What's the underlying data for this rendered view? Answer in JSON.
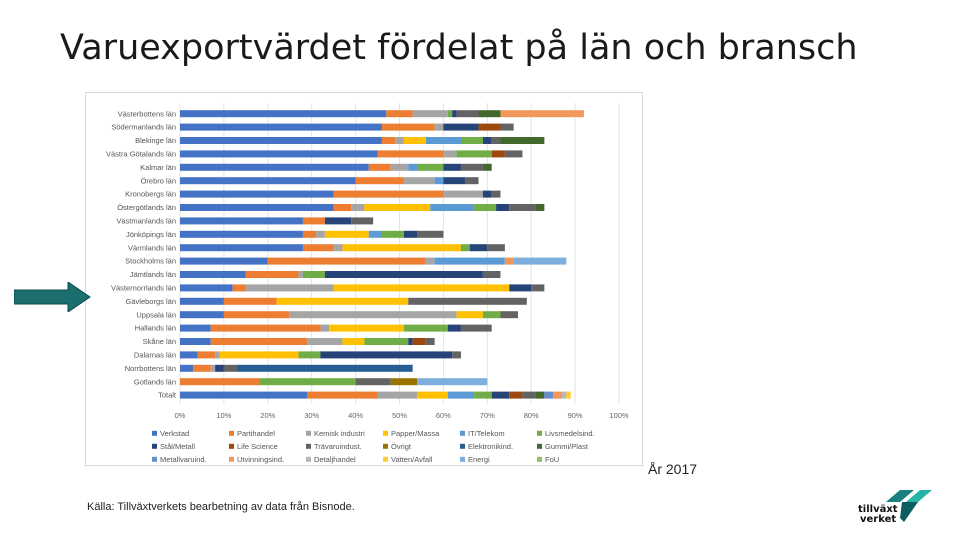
{
  "title": "Varuexportvärdet fördelat på län och bransch",
  "year_label": "År 2017",
  "source": "Källa: Tillväxtverkets bearbetning av data från Bisnode.",
  "logo": {
    "line1": "tillväxt",
    "line2": "verket",
    "colors": [
      "#1a7f7f",
      "#27b3a6",
      "#0d5e5e"
    ]
  },
  "arrow_color": "#1a6e6e",
  "chart_data": {
    "type": "bar",
    "orientation": "horizontal",
    "stacked": "percent",
    "xlim": [
      0,
      100
    ],
    "xticks": [
      "0%",
      "10%",
      "20%",
      "30%",
      "40%",
      "50%",
      "60%",
      "70%",
      "80%",
      "90%",
      "100%"
    ],
    "grid": true,
    "legend_position": "bottom",
    "categories": [
      "Västerbottens län",
      "Södermanlands län",
      "Blekinge län",
      "Västra Götalands län",
      "Kalmar län",
      "Örebro län",
      "Kronobergs län",
      "Östergötlands län",
      "Västmanlands län",
      "Jönköpings län",
      "Värmlands län",
      "Stockholms län",
      "Jämtlands län",
      "Västernorrlands län",
      "Gävleborgs län",
      "Uppsala län",
      "Hallands län",
      "Skåne län",
      "Dalarnas län",
      "Norrbottens län",
      "Gotlands län",
      "Totalt"
    ],
    "series": [
      {
        "name": "Verkstad",
        "color": "#4472c4",
        "values": [
          47,
          46,
          46,
          45,
          43,
          40,
          35,
          35,
          28,
          28,
          28,
          20,
          15,
          12,
          10,
          10,
          7,
          7,
          4,
          3,
          0,
          29
        ]
      },
      {
        "name": "Partihandel",
        "color": "#ed7d31",
        "values": [
          6,
          12,
          3,
          15,
          5,
          11,
          25,
          4,
          5,
          3,
          7,
          36,
          12,
          3,
          12,
          15,
          25,
          22,
          4,
          4,
          18,
          16
        ]
      },
      {
        "name": "Kemisk industri",
        "color": "#a5a5a5",
        "values": [
          8,
          2,
          2,
          3,
          4,
          7,
          9,
          3,
          0,
          2,
          2,
          2,
          1,
          20,
          0,
          38,
          2,
          8,
          1,
          1,
          0,
          9
        ]
      },
      {
        "name": "Papper/Massa",
        "color": "#ffc000",
        "values": [
          0,
          0,
          5,
          0,
          0,
          0,
          0,
          15,
          0,
          10,
          27,
          0,
          0,
          40,
          30,
          6,
          17,
          5,
          18,
          0,
          0,
          7
        ]
      },
      {
        "name": "IT/Telekom",
        "color": "#5b9bd5",
        "values": [
          0,
          0,
          8,
          0,
          2,
          2,
          0,
          10,
          0,
          3,
          0,
          16,
          0,
          0,
          0,
          0,
          0,
          0,
          0,
          0,
          0,
          6
        ]
      },
      {
        "name": "Livsmedelsind.",
        "color": "#70ad47",
        "values": [
          1,
          0,
          5,
          8,
          6,
          0,
          0,
          5,
          0,
          5,
          2,
          0,
          5,
          0,
          0,
          4,
          10,
          10,
          5,
          0,
          22,
          4
        ]
      },
      {
        "name": "Stål/Metall",
        "color": "#264478",
        "values": [
          1,
          8,
          2,
          0,
          4,
          5,
          2,
          3,
          6,
          3,
          4,
          0,
          36,
          5,
          0,
          0,
          3,
          1,
          30,
          2,
          0,
          4
        ]
      },
      {
        "name": "Life Science",
        "color": "#9e480e",
        "values": [
          0,
          5,
          0,
          3,
          0,
          0,
          0,
          0,
          0,
          0,
          0,
          0,
          0,
          0,
          0,
          0,
          0,
          3,
          0,
          0,
          0,
          3
        ]
      },
      {
        "name": "Trävaruindust.",
        "color": "#636363",
        "values": [
          5,
          3,
          2,
          4,
          5,
          3,
          2,
          6,
          5,
          6,
          4,
          0,
          4,
          3,
          27,
          4,
          7,
          2,
          2,
          3,
          8,
          3
        ]
      },
      {
        "name": "Övrigt",
        "color": "#997300",
        "values": [
          0,
          0,
          0,
          0,
          0,
          0,
          0,
          0,
          0,
          0,
          0,
          0,
          0,
          0,
          0,
          0,
          0,
          0,
          0,
          0,
          6,
          0
        ]
      },
      {
        "name": "Elektronikind.",
        "color": "#255e91",
        "values": [
          0,
          0,
          0,
          0,
          0,
          0,
          0,
          0,
          0,
          0,
          0,
          0,
          0,
          0,
          0,
          0,
          0,
          0,
          0,
          40,
          0,
          0
        ]
      },
      {
        "name": "Gummi/Plast",
        "color": "#43682b",
        "values": [
          5,
          0,
          10,
          0,
          2,
          0,
          0,
          2,
          0,
          0,
          0,
          0,
          0,
          0,
          0,
          0,
          0,
          0,
          0,
          0,
          0,
          2
        ]
      },
      {
        "name": "Metallvaruind.",
        "color": "#698ed0",
        "values": [
          0,
          0,
          0,
          0,
          0,
          0,
          0,
          0,
          0,
          0,
          0,
          0,
          0,
          0,
          0,
          0,
          0,
          0,
          0,
          0,
          0,
          2
        ]
      },
      {
        "name": "Utvinningsind.",
        "color": "#f1975a",
        "values": [
          19,
          0,
          0,
          0,
          0,
          0,
          0,
          0,
          0,
          0,
          0,
          2,
          0,
          0,
          0,
          0,
          0,
          0,
          0,
          0,
          0,
          2
        ]
      },
      {
        "name": "Detaljhandel",
        "color": "#b7b7b7",
        "values": [
          0,
          0,
          0,
          0,
          0,
          0,
          0,
          0,
          0,
          0,
          0,
          0,
          0,
          0,
          0,
          0,
          0,
          0,
          0,
          0,
          0,
          1
        ]
      },
      {
        "name": "Vatten/Avfall",
        "color": "#ffcd33",
        "values": [
          0,
          0,
          0,
          0,
          0,
          0,
          0,
          0,
          0,
          0,
          0,
          0,
          0,
          0,
          0,
          0,
          0,
          0,
          0,
          0,
          0,
          1
        ]
      },
      {
        "name": "Energi",
        "color": "#7cafdd",
        "values": [
          0,
          0,
          0,
          0,
          0,
          0,
          0,
          0,
          0,
          0,
          0,
          12,
          0,
          0,
          0,
          0,
          0,
          0,
          0,
          0,
          16,
          0
        ]
      },
      {
        "name": "FoU",
        "color": "#8cc168",
        "values": [
          0,
          0,
          0,
          0,
          0,
          0,
          0,
          0,
          0,
          0,
          0,
          0,
          0,
          0,
          0,
          0,
          0,
          0,
          0,
          0,
          0,
          0
        ]
      }
    ]
  }
}
